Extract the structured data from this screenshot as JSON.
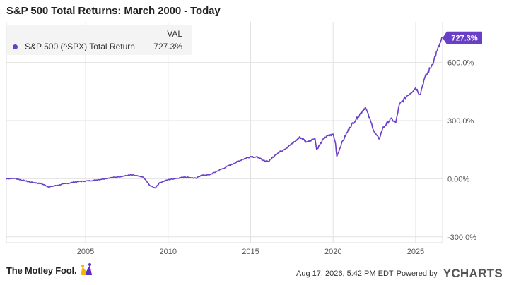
{
  "title": "S&P 500 Total Returns: March 2000 - Today",
  "legend": {
    "header": "VAL",
    "series_name": "S&P 500 (^SPX) Total Return",
    "series_value": "727.3%"
  },
  "colors": {
    "line": "#6a3fc7",
    "grid": "#e2e2e2",
    "label_bg": "#6a3fc7"
  },
  "footer": {
    "brand": "The Motley Fool.",
    "timestamp": "Aug 17, 2026, 5:42 PM EDT",
    "powered_by": "Powered by",
    "provider": "YCHARTS",
    "logo_icon": "jester-hat-icon"
  },
  "chart_data": {
    "type": "line",
    "title": "S&P 500 Total Returns: March 2000 - Today",
    "xlabel": "",
    "ylabel": "",
    "xlim": [
      2000.2,
      2026.63
    ],
    "ylim": [
      -330,
      810
    ],
    "x_ticks": [
      "2005",
      "2010",
      "2015",
      "2020",
      "2025"
    ],
    "x_tick_values": [
      2005,
      2010,
      2015,
      2020,
      2025
    ],
    "y_ticks": [
      "-300.0%",
      "0.00%",
      "300.0%",
      "600.0%"
    ],
    "y_tick_values": [
      -300,
      0,
      300,
      600
    ],
    "last_value_label": "727.3%",
    "grid": true,
    "legend_position": "top-left",
    "series": [
      {
        "name": "S&P 500 (^SPX) Total Return",
        "x": [
          2000.2,
          2000.7,
          2001.3,
          2001.7,
          2002.3,
          2002.8,
          2003.2,
          2003.8,
          2004.5,
          2005.0,
          2005.5,
          2006.0,
          2006.5,
          2007.0,
          2007.8,
          2008.5,
          2008.9,
          2009.2,
          2009.5,
          2010.0,
          2010.5,
          2011.0,
          2011.7,
          2012.0,
          2012.5,
          2013.0,
          2013.5,
          2014.0,
          2014.5,
          2015.0,
          2015.5,
          2015.7,
          2016.1,
          2016.5,
          2017.0,
          2017.5,
          2018.0,
          2018.4,
          2018.9,
          2019.0,
          2019.5,
          2020.0,
          2020.15,
          2020.22,
          2020.5,
          2021.0,
          2021.5,
          2021.95,
          2022.3,
          2022.5,
          2022.78,
          2023.0,
          2023.5,
          2023.8,
          2024.0,
          2024.5,
          2025.0,
          2025.27,
          2025.5,
          2026.0,
          2026.3,
          2026.63
        ],
        "values": [
          0,
          2,
          -10,
          -18,
          -25,
          -42,
          -35,
          -25,
          -15,
          -12,
          -8,
          -2,
          5,
          10,
          20,
          8,
          -35,
          -48,
          -20,
          -5,
          2,
          10,
          2,
          18,
          20,
          40,
          60,
          80,
          100,
          115,
          110,
          95,
          90,
          125,
          150,
          180,
          215,
          190,
          210,
          150,
          215,
          230,
          180,
          115,
          180,
          265,
          320,
          370,
          290,
          240,
          205,
          260,
          310,
          290,
          380,
          430,
          470,
          435,
          510,
          590,
          660,
          727.3
        ]
      }
    ]
  }
}
